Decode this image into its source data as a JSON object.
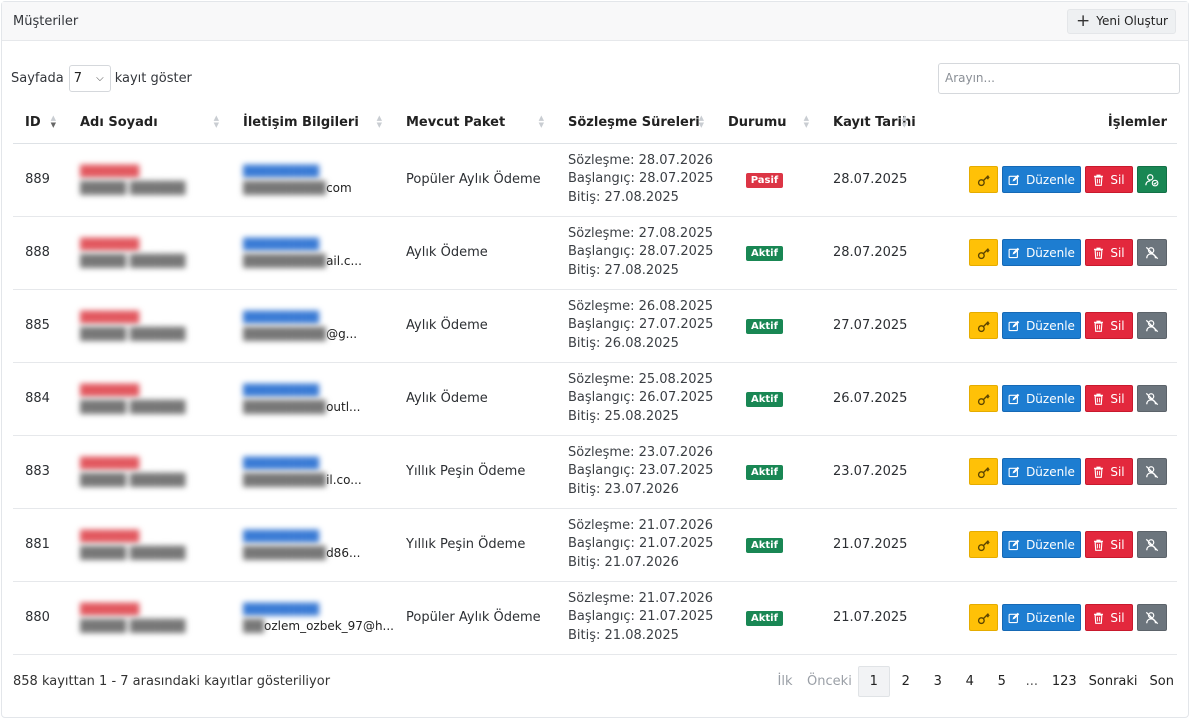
{
  "header": {
    "title": "Müşteriler",
    "new_button": "Yeni Oluştur"
  },
  "controls": {
    "length_prefix": "Sayfada",
    "length_value": "7",
    "length_suffix": "kayıt göster",
    "search_placeholder": "Arayın..."
  },
  "columns": [
    "ID",
    "Adı Soyadı",
    "İletişim Bilgileri",
    "Mevcut Paket",
    "Sözleşme Süreleri",
    "Durumu",
    "Kayıt Tarihi",
    "İşlemler"
  ],
  "rows": [
    {
      "id": "889",
      "contact_tail": "com",
      "package": "Popüler Aylık Ödeme",
      "contract": "Sözleşme: 28.07.2026",
      "start": "Başlangıç: 28.07.2025",
      "end": "Bitiş: 27.08.2025",
      "status": "Pasif",
      "status_color": "#dc3545",
      "date": "28.07.2025",
      "user_icon": "user-check-icon"
    },
    {
      "id": "888",
      "contact_tail": "ail.c...",
      "package": "Aylık Ödeme",
      "contract": "Sözleşme: 27.08.2025",
      "start": "Başlangıç: 28.07.2025",
      "end": "Bitiş: 27.08.2025",
      "status": "Aktif",
      "status_color": "#198754",
      "date": "28.07.2025",
      "user_icon": "user-x-icon"
    },
    {
      "id": "885",
      "contact_tail": "@g...",
      "package": "Aylık Ödeme",
      "contract": "Sözleşme: 26.08.2025",
      "start": "Başlangıç: 27.07.2025",
      "end": "Bitiş: 26.08.2025",
      "status": "Aktif",
      "status_color": "#198754",
      "date": "27.07.2025",
      "user_icon": "user-x-icon"
    },
    {
      "id": "884",
      "contact_tail": "outl...",
      "package": "Aylık Ödeme",
      "contract": "Sözleşme: 25.08.2025",
      "start": "Başlangıç: 26.07.2025",
      "end": "Bitiş: 25.08.2025",
      "status": "Aktif",
      "status_color": "#198754",
      "date": "26.07.2025",
      "user_icon": "user-x-icon"
    },
    {
      "id": "883",
      "contact_tail": "il.co...",
      "package": "Yıllık Peşin Ödeme",
      "contract": "Sözleşme: 23.07.2026",
      "start": "Başlangıç: 23.07.2025",
      "end": "Bitiş: 23.07.2026",
      "status": "Aktif",
      "status_color": "#198754",
      "date": "23.07.2025",
      "user_icon": "user-x-icon"
    },
    {
      "id": "881",
      "contact_tail": "d86...",
      "package": "Yıllık Peşin Ödeme",
      "contract": "Sözleşme: 21.07.2026",
      "start": "Başlangıç: 21.07.2025",
      "end": "Bitiş: 21.07.2026",
      "status": "Aktif",
      "status_color": "#198754",
      "date": "21.07.2025",
      "user_icon": "user-x-icon"
    },
    {
      "id": "880",
      "contact_tail": "ozlem_ozbek_97@h...",
      "package": "Popüler Aylık Ödeme",
      "contract": "Sözleşme: 21.07.2026",
      "start": "Başlangıç: 21.07.2025",
      "end": "Bitiş: 21.08.2025",
      "status": "Aktif",
      "status_color": "#198754",
      "date": "21.07.2025",
      "user_icon": "user-x-icon"
    }
  ],
  "actions": {
    "edit_label": "Düzenle",
    "delete_label": "Sil"
  },
  "footer": {
    "info": "858 kayıttan 1 - 7 arasındaki kayıtlar gösteriliyor",
    "pager": {
      "first": "İlk",
      "prev": "Önceki",
      "pages": [
        "1",
        "2",
        "3",
        "4",
        "5"
      ],
      "ellipsis": "...",
      "last_page": "123",
      "next": "Sonraki",
      "last": "Son",
      "active": "1"
    }
  }
}
